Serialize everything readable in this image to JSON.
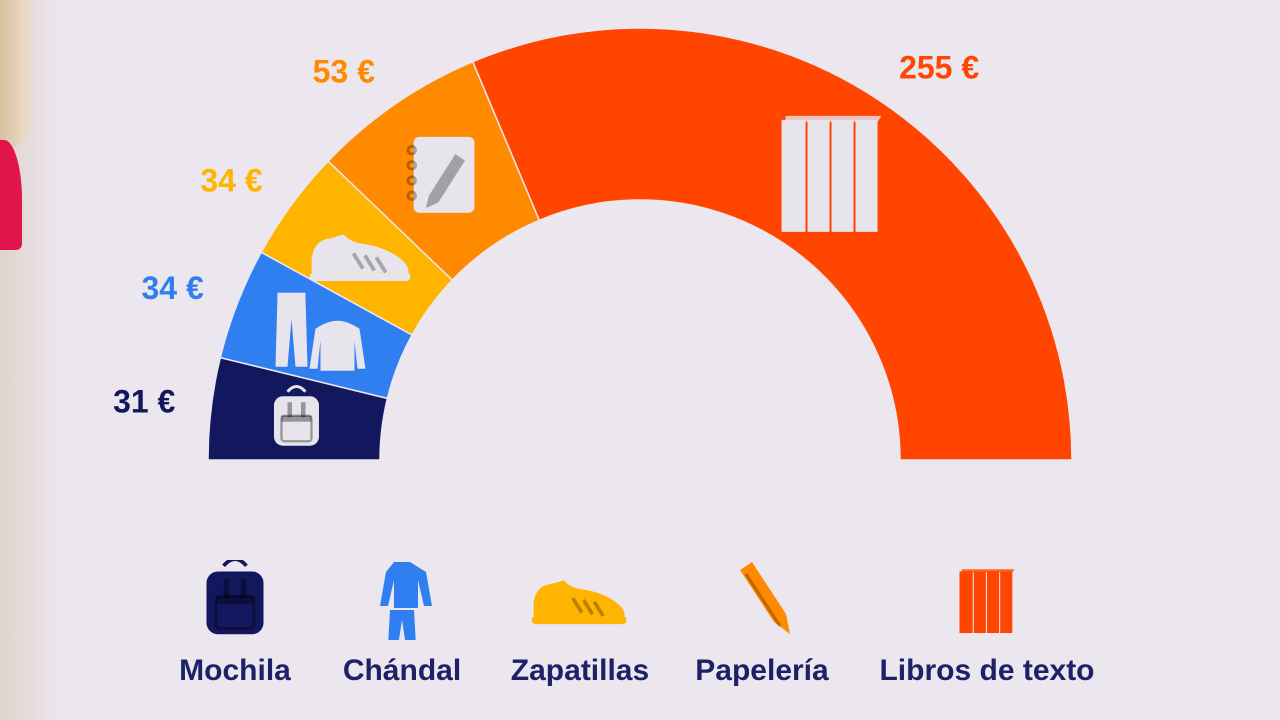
{
  "chart_data": {
    "type": "pie",
    "variant": "half-donut",
    "series": [
      {
        "name": "Mochila",
        "value": 31,
        "label": "31 €",
        "color": "#13185e",
        "icon": "backpack-icon"
      },
      {
        "name": "Chándal",
        "value": 34,
        "label": "34 €",
        "color": "#2f7ff0",
        "icon": "tracksuit-icon"
      },
      {
        "name": "Zapatillas",
        "value": 34,
        "label": "34 €",
        "color": "#ffb400",
        "icon": "sneaker-icon"
      },
      {
        "name": "Papelería",
        "value": 53,
        "label": "53 €",
        "color": "#ff8a00",
        "icon": "notebook-pencil-icon"
      },
      {
        "name": "Libros de texto",
        "value": 255,
        "label": "255 €",
        "color": "#ff4500",
        "icon": "books-icon"
      }
    ],
    "legend": "bottom"
  },
  "legend": {
    "items": [
      {
        "label": "Mochila",
        "icon": "backpack-icon",
        "color": "#13185e"
      },
      {
        "label": "Chándal",
        "icon": "tracksuit-icon",
        "color": "#2f7ff0"
      },
      {
        "label": "Zapatillas",
        "icon": "sneaker-icon",
        "color": "#ffb400"
      },
      {
        "label": "Papelería",
        "icon": "pencil-icon",
        "color": "#ff8a00"
      },
      {
        "label": "Libros de texto",
        "icon": "books-icon",
        "color": "#ff4500"
      }
    ]
  },
  "colors": {
    "background": "#ece6ee",
    "legend_text": "#1d2167"
  }
}
